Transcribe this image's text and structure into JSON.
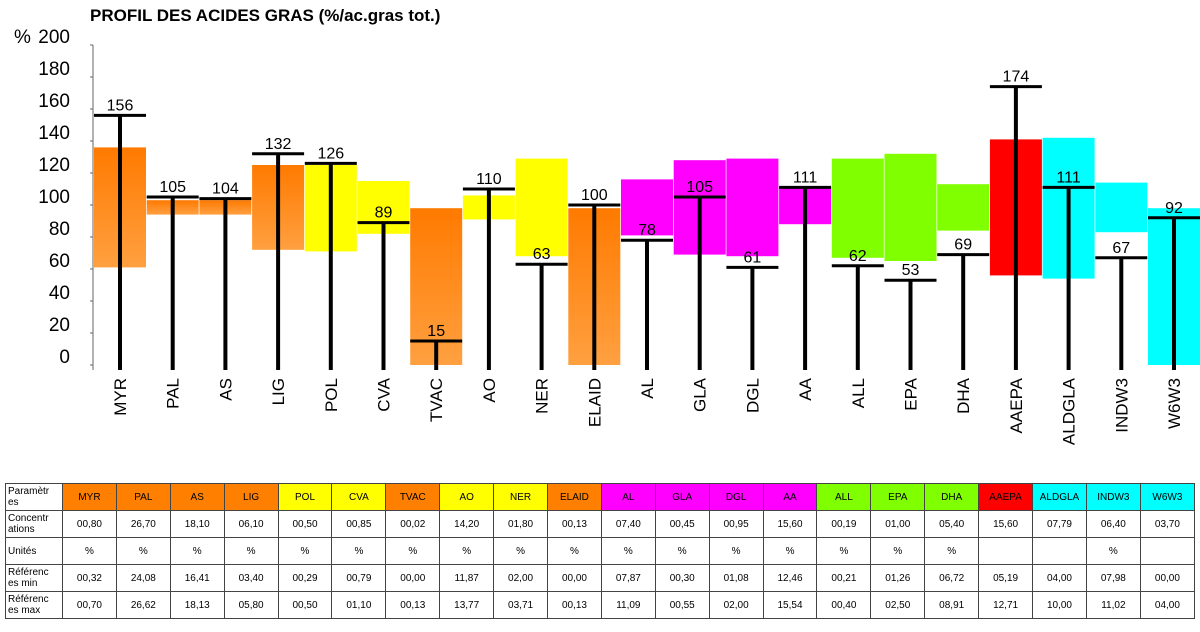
{
  "chart_data": {
    "type": "bar",
    "title": "PROFIL DES ACIDES GRAS (%/ac.gras tot.)",
    "ylabel": "%",
    "ylim": [
      0,
      200
    ],
    "yticks": [
      0,
      20,
      40,
      60,
      80,
      100,
      120,
      140,
      160,
      180,
      200
    ],
    "grid": false,
    "categories": [
      "MYR",
      "PAL",
      "AS",
      "LIG",
      "POL",
      "CVA",
      "TVAC",
      "AO",
      "NER",
      "ELAID",
      "AL",
      "GLA",
      "DGL",
      "AA",
      "ALL",
      "EPA",
      "DHA",
      "AAEPA",
      "ALDGLA",
      "INDW3",
      "W6W3"
    ],
    "values": [
      156,
      105,
      104,
      132,
      126,
      89,
      15,
      110,
      63,
      100,
      78,
      105,
      61,
      111,
      62,
      53,
      69,
      174,
      111,
      67,
      92
    ],
    "reference_ranges": [
      [
        61,
        136
      ],
      [
        94,
        103
      ],
      [
        94,
        103
      ],
      [
        72,
        125
      ],
      [
        71,
        125
      ],
      [
        82,
        115
      ],
      [
        0,
        98
      ],
      [
        91,
        106
      ],
      [
        68,
        129
      ],
      [
        0,
        98
      ],
      [
        81,
        116
      ],
      [
        69,
        128
      ],
      [
        68,
        129
      ],
      [
        88,
        111
      ],
      [
        67,
        129
      ],
      [
        65,
        132
      ],
      [
        84,
        113
      ],
      [
        56,
        141
      ],
      [
        54,
        142
      ],
      [
        83,
        114
      ],
      [
        0,
        98
      ]
    ],
    "colors": [
      "#ff8000",
      "#ff8000",
      "#ff8000",
      "#ff8000",
      "#ffff00",
      "#ffff00",
      "#ff8000",
      "#ffff00",
      "#ffff00",
      "#ff8000",
      "#ff00ff",
      "#ff00ff",
      "#ff00ff",
      "#ff00ff",
      "#80ff00",
      "#80ff00",
      "#80ff00",
      "#ff0000",
      "#00ffff",
      "#00ffff",
      "#00ffff"
    ]
  },
  "table": {
    "row_labels": [
      "Paramètres",
      "Concentrations",
      "Unités",
      "Références min",
      "Références max"
    ],
    "row_labels_display": [
      "Paramètr es",
      "Concentr ations",
      "Unités",
      "Référenc es min",
      "Référenc es max"
    ],
    "concentrations": [
      "00,80",
      "26,70",
      "18,10",
      "06,10",
      "00,50",
      "00,85",
      "00,02",
      "14,20",
      "01,80",
      "00,13",
      "07,40",
      "00,45",
      "00,95",
      "15,60",
      "00,19",
      "01,00",
      "05,40",
      "15,60",
      "07,79",
      "06,40",
      "03,70"
    ],
    "units": [
      "%",
      "%",
      "%",
      "%",
      "%",
      "%",
      "%",
      "%",
      "%",
      "%",
      "%",
      "%",
      "%",
      "%",
      "%",
      "%",
      "%",
      "",
      "",
      "%",
      ""
    ],
    "ref_min": [
      "00,32",
      "24,08",
      "16,41",
      "03,40",
      "00,29",
      "00,79",
      "00,00",
      "11,87",
      "02,00",
      "00,00",
      "07,87",
      "00,30",
      "01,08",
      "12,46",
      "00,21",
      "01,26",
      "06,72",
      "05,19",
      "04,00",
      "07,98",
      "00,00"
    ],
    "ref_max": [
      "00,70",
      "26,62",
      "18,13",
      "05,80",
      "00,50",
      "01,10",
      "00,13",
      "13,77",
      "03,71",
      "00,13",
      "11,09",
      "00,55",
      "02,00",
      "15,54",
      "00,40",
      "02,50",
      "08,91",
      "12,71",
      "10,00",
      "11,02",
      "04,00"
    ]
  }
}
